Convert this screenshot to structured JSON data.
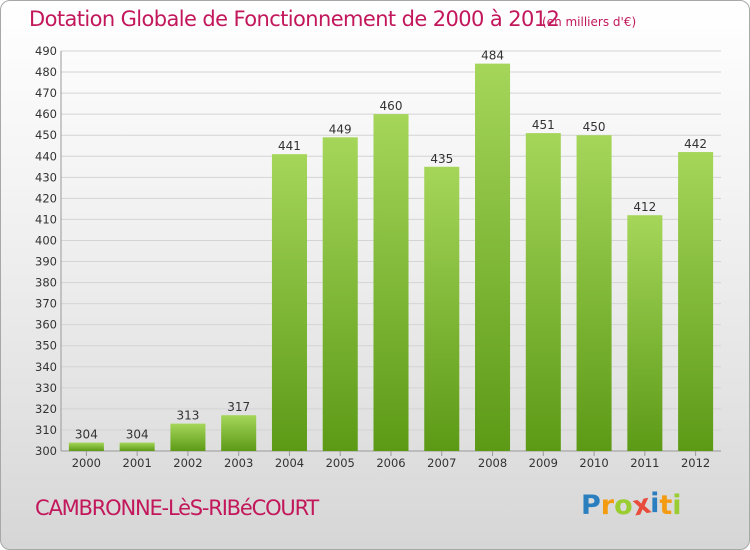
{
  "header": {
    "title": "Dotation Globale de Fonctionnement de 2000 à 2012",
    "unit": "(en milliers d'€)"
  },
  "footer": {
    "commune": "CAMBRONNE-LèS-RIBéCOURT",
    "logo": {
      "text": "Proxiti",
      "letter_colors": [
        "#2c7fbf",
        "#f39c12",
        "#9acd32",
        "#e74c3c",
        "#2c7fbf",
        "#f39c12",
        "#9acd32"
      ]
    }
  },
  "colors": {
    "bar_top": "#a5d65a",
    "bar_bottom": "#5c9a16",
    "text": "#333333",
    "accent": "#c2185b"
  },
  "chart_data": {
    "type": "bar",
    "categories": [
      "2000",
      "2001",
      "2002",
      "2003",
      "2004",
      "2005",
      "2006",
      "2007",
      "2008",
      "2009",
      "2010",
      "2011",
      "2012"
    ],
    "values": [
      304,
      304,
      313,
      317,
      441,
      449,
      460,
      435,
      484,
      451,
      450,
      412,
      442
    ],
    "ylim": [
      300,
      490
    ],
    "yticks": [
      300,
      310,
      320,
      330,
      340,
      350,
      360,
      370,
      380,
      390,
      400,
      410,
      420,
      430,
      440,
      450,
      460,
      470,
      480,
      490
    ],
    "grid": true,
    "data_labels": true
  }
}
